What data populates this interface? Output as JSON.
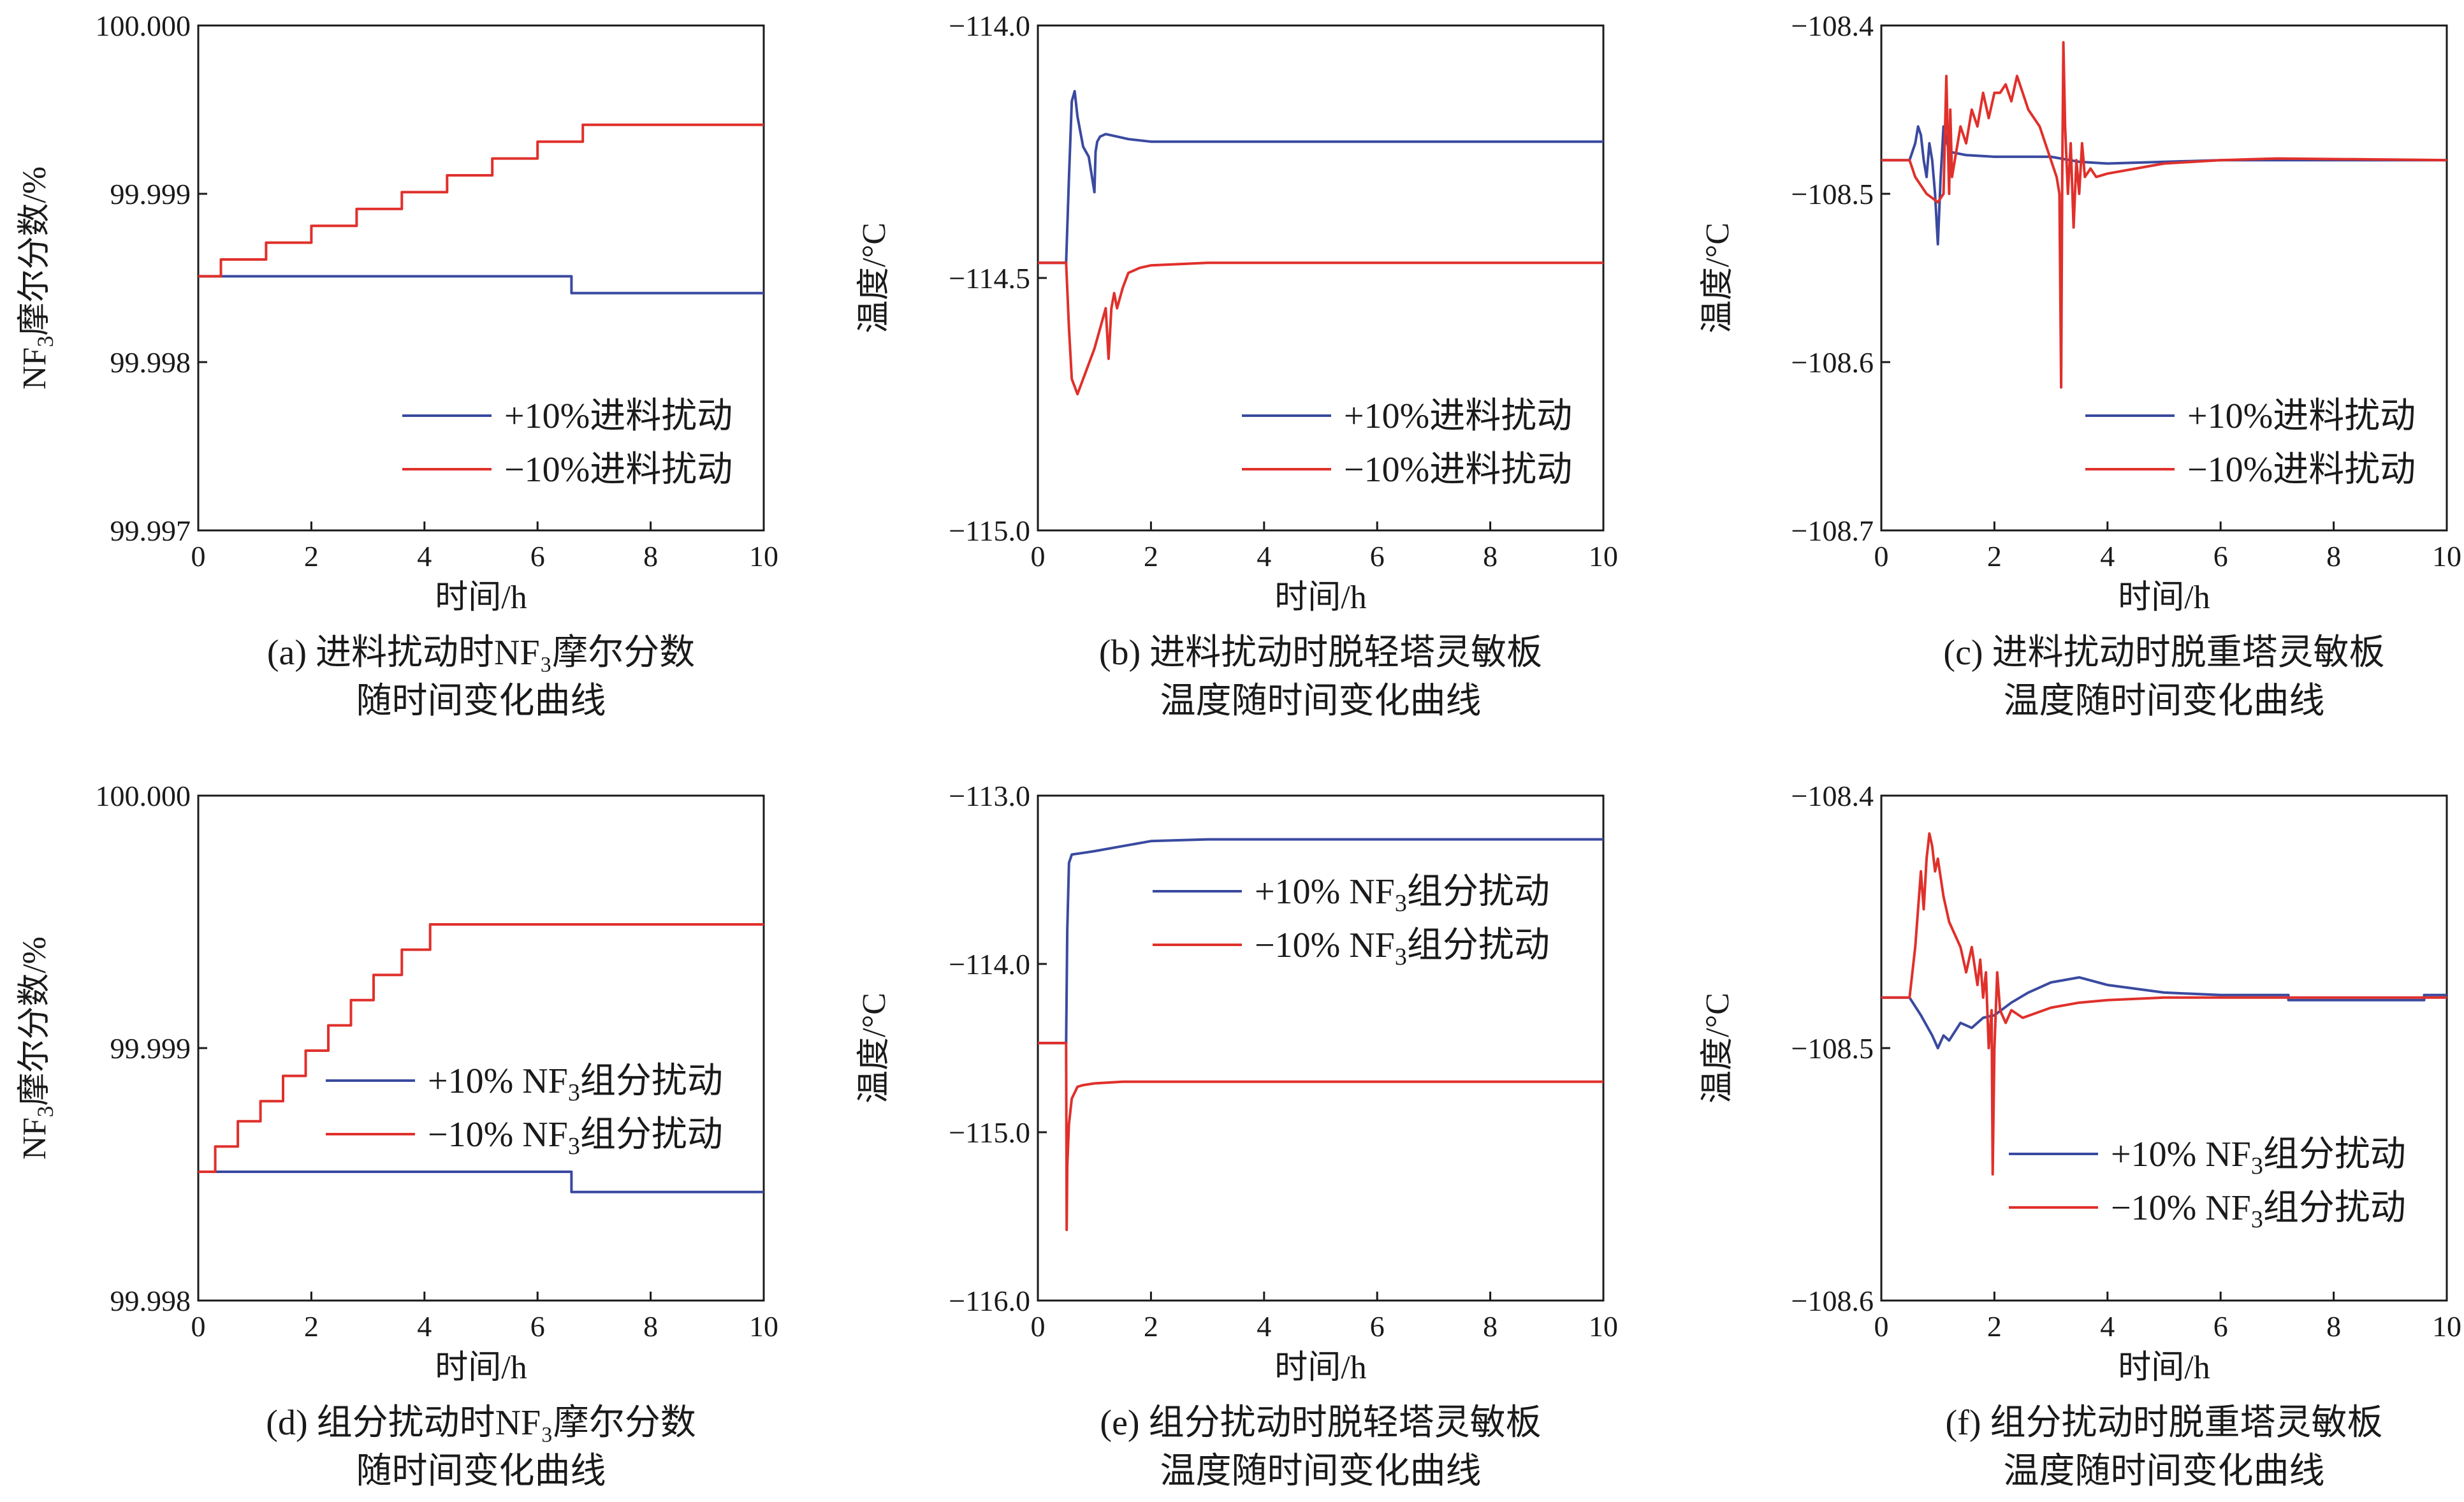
{
  "chart_data": [
    {
      "id": "a",
      "type": "line",
      "xlim": [
        0,
        10
      ],
      "ylim": [
        99.997,
        100.0
      ],
      "xticks": [
        0,
        2,
        4,
        6,
        8,
        10
      ],
      "yticks": [
        99.997,
        99.998,
        99.999,
        100.0
      ],
      "ytick_labels": [
        "99.997",
        "99.998",
        "99.999",
        "100.000"
      ],
      "xlabel": "时间/h",
      "ylabel_parts": [
        "NF",
        "3",
        "摩尔分数/%"
      ],
      "legend_pos": "lower-right",
      "caption": [
        "(a) 进料扰动时NF₃摩尔分数",
        "随时间变化曲线"
      ],
      "series": [
        {
          "name": "+10%进料扰动",
          "color": "#3a4aa0",
          "x": [
            0.0,
            6.6,
            6.6,
            10.0
          ],
          "y": [
            99.99851,
            99.99851,
            99.99841,
            99.99841
          ]
        },
        {
          "name": "−10%进料扰动",
          "color": "#e0302b",
          "x": [
            0.0,
            0.4,
            0.4,
            1.2,
            1.2,
            2.0,
            2.0,
            2.8,
            2.8,
            3.6,
            3.6,
            4.4,
            4.4,
            5.2,
            5.2,
            6.0,
            6.0,
            6.8,
            6.8,
            10.0
          ],
          "y": [
            99.99851,
            99.99851,
            99.99861,
            99.99861,
            99.99871,
            99.99871,
            99.99881,
            99.99881,
            99.99891,
            99.99891,
            99.99901,
            99.99901,
            99.99911,
            99.99911,
            99.99921,
            99.99921,
            99.99931,
            99.99931,
            99.99941,
            99.99941
          ]
        }
      ]
    },
    {
      "id": "b",
      "type": "line",
      "xlim": [
        0,
        10
      ],
      "ylim": [
        -115.0,
        -114.0
      ],
      "xticks": [
        0,
        2,
        4,
        6,
        8,
        10
      ],
      "yticks": [
        -115.0,
        -114.5,
        -114.0
      ],
      "ytick_labels": [
        "−115.0",
        "−114.5",
        "−114.0"
      ],
      "xlabel": "时间/h",
      "ylabel_parts": [
        "温度/°C"
      ],
      "legend_pos": "lower-right",
      "caption": [
        "(b) 进料扰动时脱轻塔灵敏板",
        "温度随时间变化曲线"
      ],
      "series": [
        {
          "name": "+10%进料扰动",
          "color": "#3a4aa0",
          "x": [
            0.0,
            0.5,
            0.55,
            0.6,
            0.65,
            0.7,
            0.8,
            0.9,
            1.0,
            1.02,
            1.05,
            1.1,
            1.2,
            1.4,
            1.6,
            2.0,
            3.0,
            5.0,
            10.0
          ],
          "y": [
            -114.47,
            -114.47,
            -114.3,
            -114.15,
            -114.13,
            -114.18,
            -114.24,
            -114.26,
            -114.33,
            -114.25,
            -114.23,
            -114.22,
            -114.215,
            -114.22,
            -114.225,
            -114.23,
            -114.23,
            -114.23,
            -114.23
          ]
        },
        {
          "name": "−10%进料扰动",
          "color": "#e0302b",
          "x": [
            0.0,
            0.5,
            0.55,
            0.6,
            0.7,
            0.8,
            1.0,
            1.1,
            1.2,
            1.25,
            1.3,
            1.35,
            1.4,
            1.5,
            1.6,
            1.8,
            2.0,
            3.0,
            5.0,
            10.0
          ],
          "y": [
            -114.47,
            -114.47,
            -114.6,
            -114.7,
            -114.73,
            -114.7,
            -114.64,
            -114.6,
            -114.56,
            -114.66,
            -114.56,
            -114.53,
            -114.56,
            -114.52,
            -114.49,
            -114.48,
            -114.475,
            -114.47,
            -114.47,
            -114.47
          ]
        }
      ]
    },
    {
      "id": "c",
      "type": "line",
      "xlim": [
        0,
        10
      ],
      "ylim": [
        -108.7,
        -108.4
      ],
      "xticks": [
        0,
        2,
        4,
        6,
        8,
        10
      ],
      "yticks": [
        -108.7,
        -108.6,
        -108.5,
        -108.4
      ],
      "ytick_labels": [
        "−108.7",
        "−108.6",
        "−108.5",
        "−108.4"
      ],
      "xlabel": "时间/h",
      "ylabel_parts": [
        "温度/°C"
      ],
      "legend_pos": "lower-right",
      "caption": [
        "(c) 进料扰动时脱重塔灵敏板",
        "温度随时间变化曲线"
      ],
      "series": [
        {
          "name": "+10%进料扰动",
          "color": "#3a4aa0",
          "x": [
            0.0,
            0.5,
            0.6,
            0.65,
            0.7,
            0.75,
            0.8,
            0.85,
            0.9,
            0.95,
            1.0,
            1.05,
            1.1,
            1.2,
            1.5,
            2.0,
            3.0,
            3.5,
            4.0,
            6.0,
            10.0
          ],
          "y": [
            -108.48,
            -108.48,
            -108.47,
            -108.46,
            -108.465,
            -108.48,
            -108.49,
            -108.47,
            -108.48,
            -108.5,
            -108.53,
            -108.49,
            -108.46,
            -108.475,
            -108.477,
            -108.478,
            -108.478,
            -108.481,
            -108.482,
            -108.48,
            -108.48
          ]
        },
        {
          "name": "−10%进料扰动",
          "color": "#e0302b",
          "x": [
            0.0,
            0.5,
            0.6,
            0.8,
            1.0,
            1.1,
            1.15,
            1.2,
            1.22,
            1.25,
            1.3,
            1.4,
            1.5,
            1.6,
            1.7,
            1.8,
            1.9,
            2.0,
            2.1,
            2.2,
            2.3,
            2.4,
            2.5,
            2.6,
            2.8,
            3.0,
            3.1,
            3.15,
            3.18,
            3.2,
            3.22,
            3.25,
            3.3,
            3.35,
            3.4,
            3.45,
            3.5,
            3.55,
            3.6,
            3.7,
            3.8,
            4.0,
            4.5,
            5.0,
            6.0,
            7.0,
            10.0
          ],
          "y": [
            -108.48,
            -108.48,
            -108.49,
            -108.5,
            -108.505,
            -108.5,
            -108.43,
            -108.5,
            -108.45,
            -108.49,
            -108.48,
            -108.46,
            -108.47,
            -108.45,
            -108.46,
            -108.44,
            -108.455,
            -108.44,
            -108.44,
            -108.435,
            -108.445,
            -108.43,
            -108.44,
            -108.45,
            -108.46,
            -108.48,
            -108.49,
            -108.5,
            -108.615,
            -108.49,
            -108.41,
            -108.46,
            -108.5,
            -108.47,
            -108.52,
            -108.48,
            -108.5,
            -108.47,
            -108.49,
            -108.485,
            -108.49,
            -108.488,
            -108.485,
            -108.482,
            -108.48,
            -108.479,
            -108.48
          ]
        }
      ]
    },
    {
      "id": "d",
      "type": "line",
      "xlim": [
        0,
        10
      ],
      "ylim": [
        99.998,
        100.0
      ],
      "xticks": [
        0,
        2,
        4,
        6,
        8,
        10
      ],
      "yticks": [
        99.998,
        99.999,
        100.0
      ],
      "ytick_labels": [
        "99.998",
        "99.999",
        "100.000"
      ],
      "xlabel": "时间/h",
      "ylabel_parts": [
        "NF",
        "3",
        "摩尔分数/%"
      ],
      "legend_pos": "lower-right",
      "caption": [
        "(d) 组分扰动时NF₃摩尔分数",
        "随时间变化曲线"
      ],
      "series": [
        {
          "name_parts": [
            "+10% NF",
            "3",
            "组分扰动"
          ],
          "color": "#3a4aa0",
          "x": [
            0.0,
            6.6,
            6.6,
            10.0
          ],
          "y": [
            99.99851,
            99.99851,
            99.99843,
            99.99843
          ]
        },
        {
          "name_parts": [
            "−10% NF",
            "3",
            "组分扰动"
          ],
          "color": "#e0302b",
          "x": [
            0.0,
            0.3,
            0.3,
            0.7,
            0.7,
            1.1,
            1.1,
            1.5,
            1.5,
            1.9,
            1.9,
            2.3,
            2.3,
            2.7,
            2.7,
            3.1,
            3.1,
            3.6,
            3.6,
            4.1,
            4.1,
            4.6,
            4.6,
            10.0
          ],
          "y": [
            99.99851,
            99.99851,
            99.99861,
            99.99861,
            99.99871,
            99.99871,
            99.99879,
            99.99879,
            99.99889,
            99.99889,
            99.99899,
            99.99899,
            99.99909,
            99.99909,
            99.99919,
            99.99919,
            99.99929,
            99.99929,
            99.99939,
            99.99939,
            99.99949,
            99.99949,
            99.99949,
            99.99949
          ]
        }
      ]
    },
    {
      "id": "e",
      "type": "line",
      "xlim": [
        0,
        10
      ],
      "ylim": [
        -116.0,
        -113.0
      ],
      "xticks": [
        0,
        2,
        4,
        6,
        8,
        10
      ],
      "yticks": [
        -116.0,
        -115.0,
        -114.0,
        -113.0
      ],
      "ytick_labels": [
        "−116.0",
        "−115.0",
        "−114.0",
        "−113.0"
      ],
      "xlabel": "时间/h",
      "ylabel_parts": [
        "温度/°C"
      ],
      "legend_pos": "top-right",
      "caption": [
        "(e) 组分扰动时脱轻塔灵敏板",
        "温度随时间变化曲线"
      ],
      "series": [
        {
          "name_parts": [
            "+10% NF",
            "3",
            "组分扰动"
          ],
          "color": "#3a4aa0",
          "x": [
            0.0,
            0.5,
            0.52,
            0.55,
            0.6,
            0.8,
            1.0,
            1.5,
            2.0,
            3.0,
            10.0
          ],
          "y": [
            -114.47,
            -114.47,
            -113.8,
            -113.4,
            -113.35,
            -113.34,
            -113.33,
            -113.3,
            -113.27,
            -113.26,
            -113.26
          ]
        },
        {
          "name_parts": [
            "−10% NF",
            "3",
            "组分扰动"
          ],
          "color": "#e0302b",
          "x": [
            0.0,
            0.5,
            0.51,
            0.52,
            0.55,
            0.6,
            0.7,
            0.8,
            1.0,
            1.5,
            2.0,
            3.0,
            10.0
          ],
          "y": [
            -114.47,
            -114.47,
            -115.58,
            -115.2,
            -114.95,
            -114.8,
            -114.73,
            -114.72,
            -114.71,
            -114.7,
            -114.7,
            -114.7,
            -114.7
          ]
        }
      ]
    },
    {
      "id": "f",
      "type": "line",
      "xlim": [
        0,
        10
      ],
      "ylim": [
        -108.6,
        -108.4
      ],
      "xticks": [
        0,
        2,
        4,
        6,
        8,
        10
      ],
      "yticks": [
        -108.6,
        -108.5,
        -108.4
      ],
      "ytick_labels": [
        "−108.6",
        "−108.5",
        "−108.4"
      ],
      "xlabel": "时间/h",
      "ylabel_parts": [
        "温度/°C"
      ],
      "legend_pos": "lower-right",
      "caption": [
        "(f) 组分扰动时脱重塔灵敏板",
        "温度随时间变化曲线"
      ],
      "series": [
        {
          "name_parts": [
            "+10% NF",
            "3",
            "组分扰动"
          ],
          "color": "#3a4aa0",
          "x": [
            0.0,
            0.5,
            0.7,
            0.9,
            1.0,
            1.1,
            1.2,
            1.4,
            1.6,
            1.8,
            2.0,
            2.3,
            2.6,
            3.0,
            3.5,
            4.0,
            5.0,
            6.0,
            7.2,
            7.2,
            9.6,
            9.6,
            10.0
          ],
          "y": [
            -108.48,
            -108.48,
            -108.487,
            -108.495,
            -108.5,
            -108.495,
            -108.497,
            -108.49,
            -108.492,
            -108.488,
            -108.487,
            -108.482,
            -108.478,
            -108.474,
            -108.472,
            -108.475,
            -108.478,
            -108.479,
            -108.479,
            -108.481,
            -108.481,
            -108.479,
            -108.479
          ]
        },
        {
          "name_parts": [
            "−10% NF",
            "3",
            "组分扰动"
          ],
          "color": "#e0302b",
          "x": [
            0.0,
            0.5,
            0.6,
            0.7,
            0.75,
            0.8,
            0.85,
            0.9,
            0.95,
            1.0,
            1.1,
            1.2,
            1.3,
            1.4,
            1.5,
            1.6,
            1.7,
            1.75,
            1.8,
            1.85,
            1.9,
            1.95,
            1.97,
            2.0,
            2.05,
            2.1,
            2.2,
            2.3,
            2.5,
            3.0,
            3.5,
            4.0,
            5.0,
            7.0,
            10.0
          ],
          "y": [
            -108.48,
            -108.48,
            -108.46,
            -108.43,
            -108.445,
            -108.425,
            -108.415,
            -108.42,
            -108.43,
            -108.425,
            -108.44,
            -108.45,
            -108.455,
            -108.46,
            -108.47,
            -108.46,
            -108.475,
            -108.465,
            -108.48,
            -108.47,
            -108.5,
            -108.485,
            -108.55,
            -108.5,
            -108.47,
            -108.485,
            -108.49,
            -108.485,
            -108.488,
            -108.484,
            -108.482,
            -108.481,
            -108.48,
            -108.48,
            -108.48
          ]
        }
      ]
    }
  ]
}
